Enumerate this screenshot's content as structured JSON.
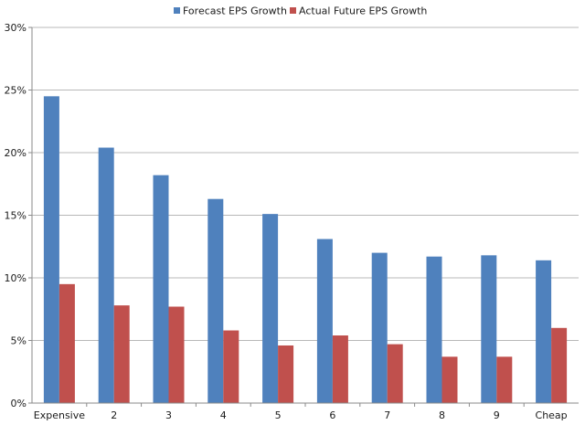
{
  "chart_data": {
    "type": "bar",
    "categories": [
      "Expensive",
      "2",
      "3",
      "4",
      "5",
      "6",
      "7",
      "8",
      "9",
      "Cheap"
    ],
    "series": [
      {
        "name": "Forecast EPS Growth",
        "color": "#4f81bd",
        "values": [
          24.5,
          20.4,
          18.2,
          16.3,
          15.1,
          13.1,
          12.0,
          11.7,
          11.8,
          11.4
        ]
      },
      {
        "name": "Actual Future EPS Growth",
        "color": "#c0504d",
        "values": [
          9.5,
          7.8,
          7.7,
          5.8,
          4.6,
          5.4,
          4.7,
          3.7,
          3.7,
          6.0
        ]
      }
    ],
    "title": "",
    "xlabel": "",
    "ylabel": "",
    "ylim": [
      0,
      30
    ],
    "yticks": [
      0,
      5,
      10,
      15,
      20,
      25,
      30
    ],
    "ytick_labels": [
      "0%",
      "5%",
      "10%",
      "15%",
      "20%",
      "25%",
      "30%"
    ],
    "grid": true,
    "legend_position": "top-center"
  }
}
